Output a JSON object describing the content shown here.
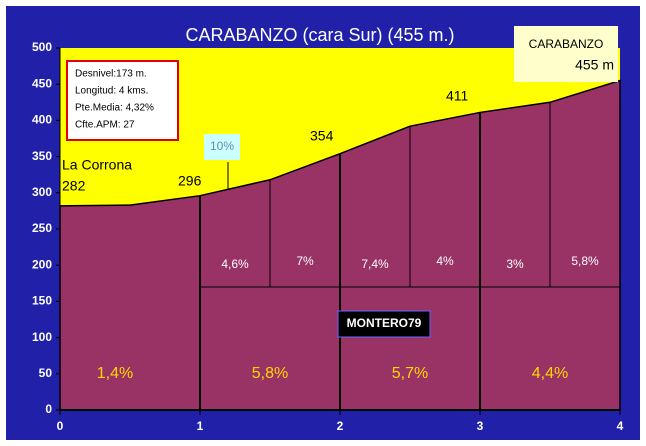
{
  "chart_data": {
    "type": "area",
    "title": "CARABANZO (cara Sur) (455 m.)",
    "x": [
      0,
      0.5,
      1,
      1.5,
      2,
      2.5,
      3,
      3.5,
      4
    ],
    "values": [
      282,
      283,
      296,
      318,
      354,
      392,
      411,
      425,
      455
    ],
    "value_labels": [
      "282",
      null,
      "296",
      null,
      "354",
      null,
      "411",
      null,
      "455 m"
    ],
    "color": "#993366",
    "xlim": [
      0,
      4
    ],
    "xticks": [
      0,
      1,
      2,
      3,
      4
    ],
    "ylim": [
      0,
      500
    ],
    "yticks": [
      0,
      50,
      100,
      150,
      200,
      250,
      300,
      350,
      400,
      450,
      500
    ],
    "start_name": "La Corrona",
    "end_name": "CARABANZO",
    "half_km_gradients": [
      "4,6%",
      "7%",
      "7,4%",
      "4%",
      "3%",
      "5,8%"
    ],
    "km_gradients": [
      "1,4%",
      "5,8%",
      "5,7%",
      "4,4%"
    ],
    "max_gradient": "10%",
    "info": [
      "Desnivel:173 m.",
      "Longitud: 4 kms.",
      "Pte.Media: 4,32%",
      "Cfte.APM: 27"
    ],
    "watermark": "MONTERO79"
  }
}
